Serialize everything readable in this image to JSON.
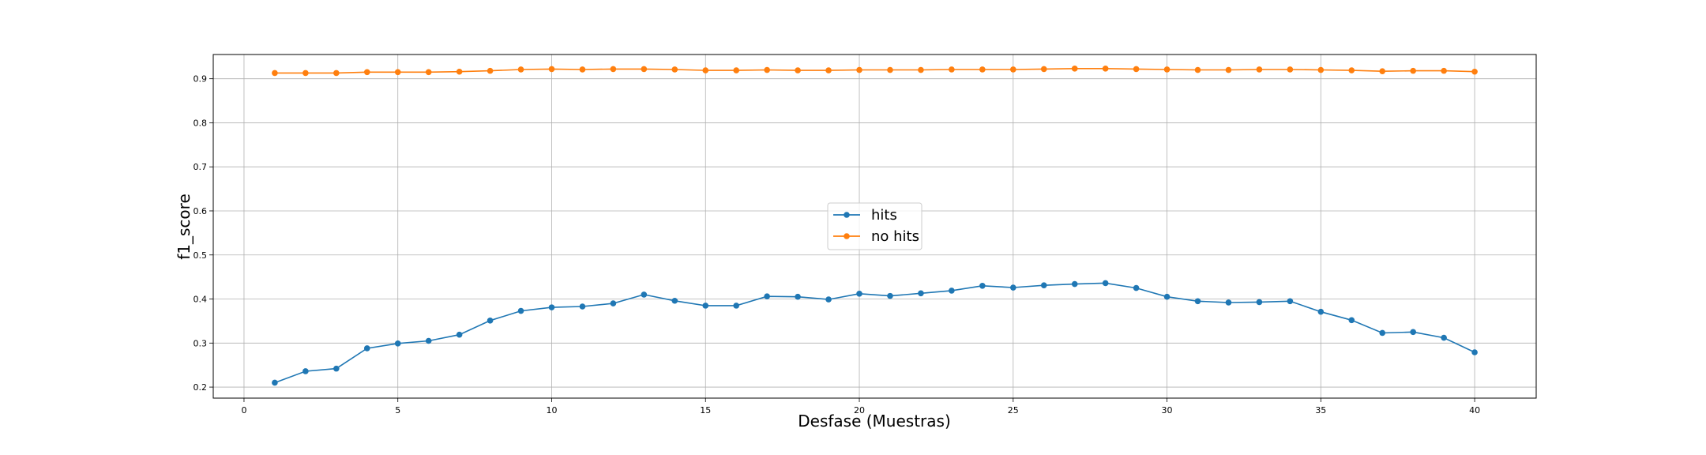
{
  "chart_data": {
    "type": "line",
    "title": "",
    "xlabel": "Desfase (Muestras)",
    "ylabel": "f1_score",
    "xlim": [
      -1,
      42
    ],
    "ylim": [
      0.175,
      0.955
    ],
    "xticks": [
      0,
      5,
      10,
      15,
      20,
      25,
      30,
      35,
      40
    ],
    "yticks": [
      0.2,
      0.3,
      0.4,
      0.5,
      0.6,
      0.7,
      0.8,
      0.9
    ],
    "grid": true,
    "legend_position": "center",
    "x": [
      1,
      2,
      3,
      4,
      5,
      6,
      7,
      8,
      9,
      10,
      11,
      12,
      13,
      14,
      15,
      16,
      17,
      18,
      19,
      20,
      21,
      22,
      23,
      24,
      25,
      26,
      27,
      28,
      29,
      30,
      31,
      32,
      33,
      34,
      35,
      36,
      37,
      38,
      39,
      40
    ],
    "series": [
      {
        "name": "hits",
        "color": "#1f77b4",
        "values": [
          0.21,
          0.236,
          0.242,
          0.288,
          0.299,
          0.305,
          0.319,
          0.351,
          0.373,
          0.381,
          0.383,
          0.39,
          0.41,
          0.396,
          0.385,
          0.385,
          0.406,
          0.405,
          0.399,
          0.412,
          0.407,
          0.413,
          0.419,
          0.43,
          0.426,
          0.431,
          0.434,
          0.436,
          0.425,
          0.405,
          0.395,
          0.392,
          0.393,
          0.395,
          0.371,
          0.352,
          0.323,
          0.325,
          0.312,
          0.279
        ]
      },
      {
        "name": "no hits",
        "color": "#ff7f0e",
        "values": [
          0.913,
          0.913,
          0.913,
          0.915,
          0.915,
          0.915,
          0.916,
          0.918,
          0.921,
          0.922,
          0.921,
          0.922,
          0.922,
          0.921,
          0.919,
          0.919,
          0.92,
          0.919,
          0.919,
          0.92,
          0.92,
          0.92,
          0.921,
          0.921,
          0.921,
          0.922,
          0.923,
          0.923,
          0.922,
          0.921,
          0.92,
          0.92,
          0.921,
          0.921,
          0.92,
          0.919,
          0.917,
          0.918,
          0.918,
          0.916
        ]
      }
    ]
  }
}
